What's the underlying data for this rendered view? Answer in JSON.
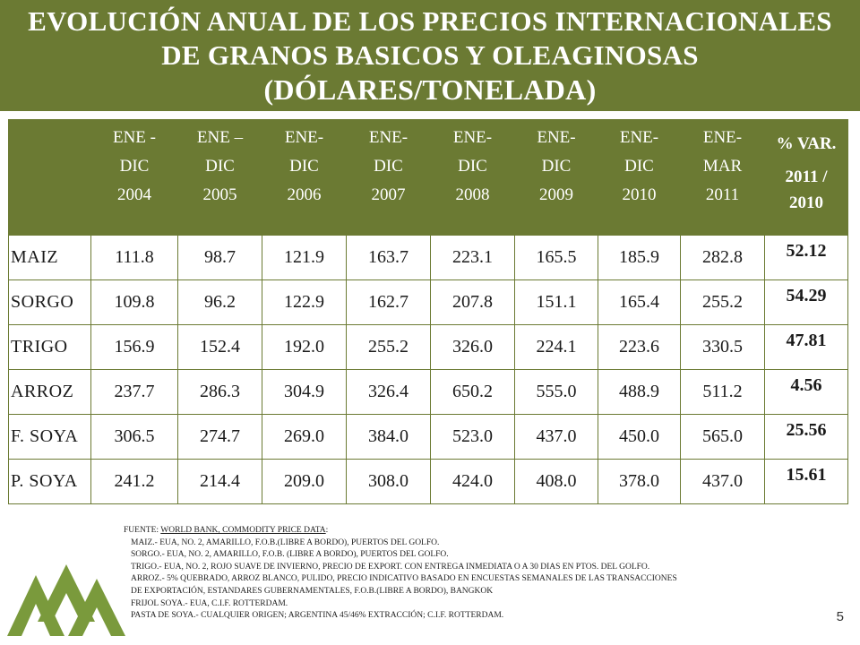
{
  "title": {
    "line1": "EVOLUCIÓN ANUAL DE LOS PRECIOS INTERNACIONALES",
    "line2": "DE GRANOS BASICOS Y OLEAGINOSAS",
    "line3": "(DÓLARES/TONELADA)"
  },
  "table": {
    "headers": [
      [
        "ENE -",
        "DIC",
        "2004"
      ],
      [
        "ENE –",
        "DIC",
        "2005"
      ],
      [
        "ENE-",
        "DIC",
        "2006"
      ],
      [
        "ENE-",
        "DIC",
        "2007"
      ],
      [
        "ENE-",
        "DIC",
        "2008"
      ],
      [
        "ENE-",
        "DIC",
        "2009"
      ],
      [
        "ENE-",
        "DIC",
        "2010"
      ],
      [
        "ENE-",
        "MAR",
        "2011"
      ]
    ],
    "var_header": [
      "% VAR.",
      "2011 /",
      "2010"
    ],
    "rows": [
      {
        "label": "MAIZ",
        "values": [
          "111.8",
          "98.7",
          "121.9",
          "163.7",
          "223.1",
          "165.5",
          "185.9",
          "282.8"
        ],
        "var": "52.12"
      },
      {
        "label": "SORGO",
        "values": [
          "109.8",
          "96.2",
          "122.9",
          "162.7",
          "207.8",
          "151.1",
          "165.4",
          "255.2"
        ],
        "var": "54.29"
      },
      {
        "label": "TRIGO",
        "values": [
          "156.9",
          "152.4",
          "192.0",
          "255.2",
          "326.0",
          "224.1",
          "223.6",
          "330.5"
        ],
        "var": "47.81"
      },
      {
        "label": "ARROZ",
        "values": [
          "237.7",
          "286.3",
          "304.9",
          "326.4",
          "650.2",
          "555.0",
          "488.9",
          "511.2"
        ],
        "var": "4.56"
      },
      {
        "label": "F. SOYA",
        "values": [
          "306.5",
          "274.7",
          "269.0",
          "384.0",
          "523.0",
          "437.0",
          "450.0",
          "565.0"
        ],
        "var": "25.56"
      },
      {
        "label": "P. SOYA",
        "values": [
          "241.2",
          "214.4",
          "209.0",
          "308.0",
          "424.0",
          "408.0",
          "378.0",
          "437.0"
        ],
        "var": "15.61"
      }
    ]
  },
  "notes": {
    "source_prefix": "FUENTE: ",
    "source_link": "WORLD BANK, COMMODITY PRICE DATA",
    "source_suffix": ":",
    "lines": [
      "MAIZ.-    EUA, NO. 2, AMARILLO, F.O.B.(LIBRE A BORDO), PUERTOS DEL GOLFO.",
      "SORGO.- EUA, NO. 2, AMARILLO, F.O.B. (LIBRE A BORDO), PUERTOS DEL GOLFO.",
      "TRIGO.-  EUA, NO. 2, ROJO SUAVE DE INVIERNO,  PRECIO DE EXPORT. CON ENTREGA INMEDIATA O A 30 DIAS EN PTOS. DEL GOLFO.",
      "ARROZ.- 5% QUEBRADO, ARROZ BLANCO,  PULIDO, PRECIO INDICATIVO BASADO  EN  ENCUESTAS SEMANALES DE LAS TRANSACCIONES",
      "DE EXPORTACIÓN, ESTANDARES GUBERNAMENTALES, F.O.B.(LIBRE A BORDO),  BANGKOK",
      "FRIJOL SOYA.-  EUA, C.I.F. ROTTERDAM.",
      "PASTA DE SOYA.- CUALQUIER ORIGEN; ARGENTINA 45/46% EXTRACCIÓN; C.I.F. ROTTERDAM."
    ]
  },
  "page_number": "5",
  "colors": {
    "accent": "#6b7a33",
    "logo": "#7a9a3c"
  }
}
